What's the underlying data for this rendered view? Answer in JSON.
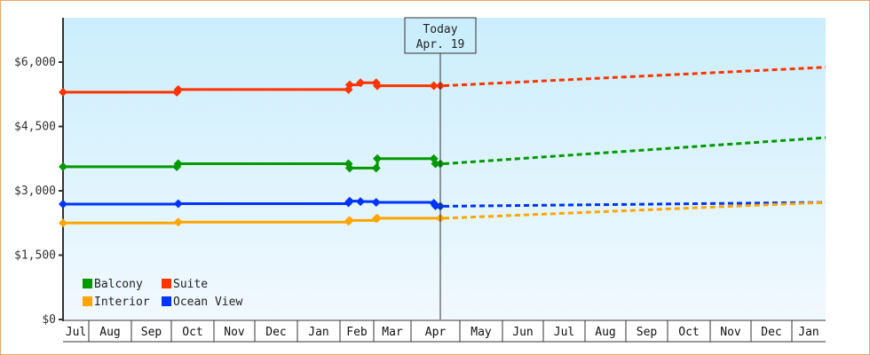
{
  "chart_data": {
    "type": "line",
    "title": "",
    "xlabel": "",
    "ylabel": "",
    "ylim": [
      0,
      7000
    ],
    "y_ticks": [
      {
        "value": 0,
        "label": "$0"
      },
      {
        "value": 1500,
        "label": "$1,500"
      },
      {
        "value": 3000,
        "label": "$3,000"
      },
      {
        "value": 4500,
        "label": "$4,500"
      },
      {
        "value": 6000,
        "label": "$6,000"
      }
    ],
    "x_months": [
      "Jul",
      "Aug",
      "Sep",
      "Oct",
      "Nov",
      "Dec",
      "Jan",
      "Feb",
      "Mar",
      "Apr",
      "May",
      "Jun",
      "Jul",
      "Aug",
      "Sep",
      "Oct",
      "Nov",
      "Dec",
      "Jan"
    ],
    "today_marker": {
      "line1": "Today",
      "line2": "Apr. 19"
    },
    "legend": [
      {
        "name": "Balcony",
        "color": "#009900"
      },
      {
        "name": "Suite",
        "color": "#ff3300"
      },
      {
        "name": "Interior",
        "color": "#ffa500"
      },
      {
        "name": "Ocean View",
        "color": "#0033ff"
      }
    ],
    "series": [
      {
        "name": "Suite",
        "color": "#ff3300",
        "history": [
          [
            "Jul 1",
            5300
          ],
          [
            "Oct 5",
            5300
          ],
          [
            "Oct 6",
            5360
          ],
          [
            "Feb 8",
            5360
          ],
          [
            "Feb 9",
            5470
          ],
          [
            "Feb 18",
            5520
          ],
          [
            "Mar 3",
            5520
          ],
          [
            "Mar 4",
            5450
          ],
          [
            "Apr 15",
            5450
          ],
          [
            "Apr 19",
            5450
          ]
        ],
        "forecast": [
          [
            "Apr 19",
            5450
          ],
          [
            "Jan 31",
            5880
          ]
        ]
      },
      {
        "name": "Balcony",
        "color": "#009900",
        "history": [
          [
            "Jul 1",
            3560
          ],
          [
            "Oct 5",
            3560
          ],
          [
            "Oct 6",
            3630
          ],
          [
            "Feb 8",
            3630
          ],
          [
            "Feb 9",
            3530
          ],
          [
            "Mar 3",
            3530
          ],
          [
            "Mar 4",
            3750
          ],
          [
            "Apr 15",
            3750
          ],
          [
            "Apr 16",
            3630
          ],
          [
            "Apr 19",
            3630
          ]
        ],
        "forecast": [
          [
            "Apr 19",
            3630
          ],
          [
            "Jan 31",
            4240
          ]
        ]
      },
      {
        "name": "Ocean View",
        "color": "#0033ff",
        "history": [
          [
            "Jul 1",
            2690
          ],
          [
            "Oct 6",
            2700
          ],
          [
            "Feb 8",
            2720
          ],
          [
            "Feb 9",
            2760
          ],
          [
            "Feb 18",
            2750
          ],
          [
            "Mar 3",
            2730
          ],
          [
            "Apr 15",
            2710
          ],
          [
            "Apr 16",
            2650
          ],
          [
            "Apr 19",
            2640
          ]
        ],
        "forecast": [
          [
            "Apr 19",
            2640
          ],
          [
            "Jan 31",
            2730
          ]
        ]
      },
      {
        "name": "Interior",
        "color": "#ffa500",
        "history": [
          [
            "Jul 1",
            2250
          ],
          [
            "Oct 6",
            2270
          ],
          [
            "Feb 8",
            2290
          ],
          [
            "Feb 9",
            2310
          ],
          [
            "Mar 3",
            2350
          ],
          [
            "Mar 4",
            2360
          ],
          [
            "Apr 19",
            2360
          ]
        ],
        "forecast": [
          [
            "Apr 19",
            2360
          ],
          [
            "Jan 31",
            2730
          ]
        ]
      }
    ]
  }
}
